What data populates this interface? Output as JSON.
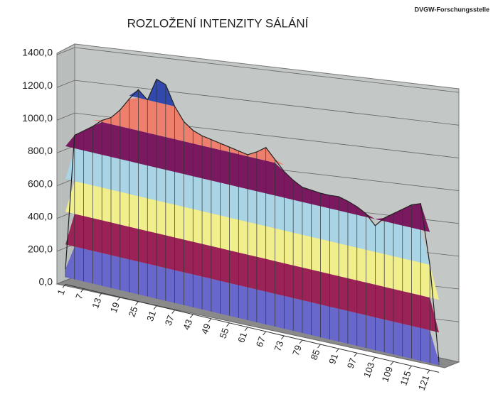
{
  "chart_data": {
    "type": "surface3d",
    "title": "ROZLOŽENÍ INTENZITY SÁLÁNÍ",
    "source": "DVGW-Forschungsstelle",
    "x": [
      1,
      4,
      7,
      10,
      13,
      16,
      19,
      22,
      25,
      28,
      31,
      34,
      37,
      40,
      43,
      46,
      49,
      52,
      55,
      58,
      61,
      64,
      67,
      70,
      73,
      76,
      79,
      82,
      85,
      88,
      91,
      94,
      97,
      100,
      103,
      106,
      109,
      112,
      115,
      118,
      121,
      124
    ],
    "values": [
      50,
      880,
      920,
      960,
      1010,
      1040,
      1100,
      1180,
      1250,
      1200,
      1340,
      1320,
      1200,
      1120,
      1080,
      1060,
      1050,
      1040,
      1030,
      1020,
      1010,
      1040,
      1080,
      1020,
      960,
      920,
      890,
      885,
      880,
      880,
      885,
      870,
      850,
      820,
      760,
      820,
      860,
      900,
      940,
      960,
      600,
      20
    ],
    "xlim": [
      1,
      124
    ],
    "xticks": [
      1,
      7,
      13,
      19,
      25,
      31,
      37,
      43,
      49,
      55,
      61,
      67,
      73,
      79,
      85,
      91,
      97,
      103,
      109,
      115,
      121
    ],
    "ylim": [
      0,
      1400
    ],
    "yticks": [
      {
        "value": 0,
        "label": "0,0"
      },
      {
        "value": 200,
        "label": "200,0"
      },
      {
        "value": 400,
        "label": "400,0"
      },
      {
        "value": 600,
        "label": "600,0"
      },
      {
        "value": 800,
        "label": "800,0"
      },
      {
        "value": 1000,
        "label": "1000,0"
      },
      {
        "value": 1200,
        "label": "1200,0"
      },
      {
        "value": 1400,
        "label": "1400,0"
      }
    ],
    "band_colors": [
      "#6868cc",
      "#9a2256",
      "#f1ee8c",
      "#a8d4e6",
      "#7a1860",
      "#ef7f6d",
      "#3148ad"
    ],
    "grid": true
  }
}
